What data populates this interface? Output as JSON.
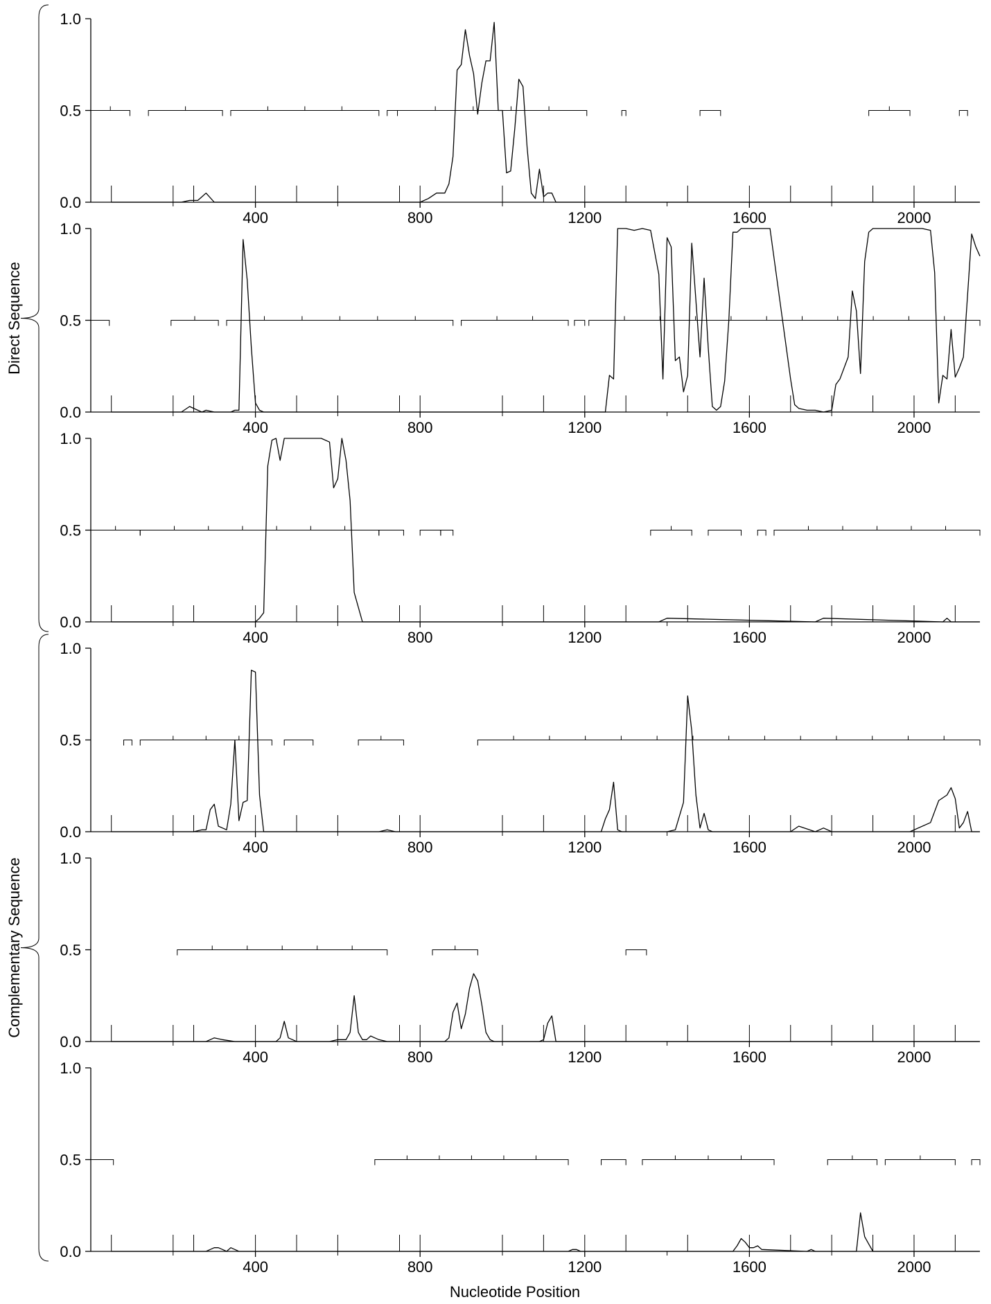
{
  "xlabel": "Nucleotide Position",
  "groups": [
    {
      "label": "Direct Sequence",
      "panels": [
        0,
        1,
        2
      ]
    },
    {
      "label": "Complementary Sequence",
      "panels": [
        3,
        4,
        5
      ]
    }
  ],
  "chart_data": [
    {
      "type": "line",
      "xlim": [
        0,
        2160
      ],
      "ylim": [
        0,
        1
      ],
      "xticks": [
        400,
        800,
        1200,
        1600,
        2000
      ],
      "yticks": [
        "0.0",
        "0.5",
        "1.0"
      ],
      "x": [
        50,
        200,
        220,
        240,
        260,
        270,
        280,
        300,
        400,
        600,
        800,
        820,
        840,
        860,
        870,
        880,
        890,
        900,
        910,
        920,
        930,
        940,
        950,
        960,
        970,
        980,
        990,
        1000,
        1010,
        1020,
        1030,
        1040,
        1050,
        1060,
        1070,
        1080,
        1090,
        1100,
        1110,
        1120,
        1130,
        1140,
        1150,
        1160,
        1170,
        2160
      ],
      "y": [
        0,
        0,
        0,
        0.01,
        0.01,
        0.03,
        0.05,
        0,
        0,
        0,
        0,
        0.02,
        0.05,
        0.05,
        0.1,
        0.25,
        0.72,
        0.75,
        0.94,
        0.8,
        0.7,
        0.48,
        0.65,
        0.77,
        0.77,
        0.98,
        0.5,
        0.5,
        0.16,
        0.17,
        0.4,
        0.67,
        0.63,
        0.3,
        0.05,
        0.02,
        0.18,
        0.03,
        0.05,
        0.05,
        0,
        0,
        0,
        0,
        0,
        0
      ],
      "segments": [
        [
          0,
          95
        ],
        [
          140,
          320
        ],
        [
          340,
          700
        ],
        [
          720,
          745
        ],
        [
          745,
          1205
        ],
        [
          1290,
          1300
        ],
        [
          1480,
          1530
        ],
        [
          1890,
          1990
        ],
        [
          2110,
          2130
        ]
      ]
    },
    {
      "type": "line",
      "xlim": [
        0,
        2160
      ],
      "ylim": [
        0,
        1
      ],
      "xticks": [
        400,
        800,
        1200,
        1600,
        2000
      ],
      "yticks": [
        "0.0",
        "0.5",
        "1.0"
      ],
      "x": [
        50,
        200,
        220,
        240,
        260,
        270,
        280,
        300,
        320,
        340,
        350,
        360,
        370,
        380,
        390,
        400,
        410,
        420,
        500,
        800,
        1200,
        1240,
        1250,
        1260,
        1270,
        1280,
        1300,
        1320,
        1340,
        1360,
        1380,
        1390,
        1400,
        1410,
        1420,
        1430,
        1440,
        1450,
        1460,
        1480,
        1490,
        1500,
        1510,
        1520,
        1530,
        1540,
        1550,
        1560,
        1570,
        1580,
        1600,
        1650,
        1700,
        1710,
        1720,
        1740,
        1760,
        1780,
        1800,
        1810,
        1820,
        1840,
        1850,
        1860,
        1870,
        1880,
        1890,
        1900,
        1920,
        1950,
        2000,
        2020,
        2040,
        2050,
        2060,
        2070,
        2080,
        2090,
        2100,
        2110,
        2120,
        2140,
        2150,
        2160
      ],
      "y": [
        0,
        0,
        0,
        0.03,
        0.01,
        0,
        0.01,
        0,
        0,
        0,
        0.01,
        0.01,
        0.94,
        0.72,
        0.35,
        0.05,
        0.01,
        0,
        0,
        0,
        0,
        0,
        0,
        0.2,
        0.18,
        1,
        1,
        0.99,
        1,
        0.99,
        0.75,
        0.18,
        0.95,
        0.9,
        0.28,
        0.3,
        0.11,
        0.2,
        0.92,
        0.3,
        0.73,
        0.35,
        0.03,
        0.01,
        0.03,
        0.17,
        0.5,
        0.98,
        0.98,
        1,
        1,
        1,
        0.18,
        0.04,
        0.02,
        0.01,
        0.01,
        0,
        0.01,
        0.15,
        0.18,
        0.3,
        0.66,
        0.55,
        0.21,
        0.82,
        0.98,
        1,
        1,
        1,
        1,
        1,
        0.99,
        0.76,
        0.05,
        0.2,
        0.18,
        0.45,
        0.19,
        0.24,
        0.3,
        0.97,
        0.9,
        0.85
      ],
      "segments": [
        [
          0,
          45
        ],
        [
          195,
          310
        ],
        [
          330,
          880
        ],
        [
          900,
          1160
        ],
        [
          1175,
          1200
        ],
        [
          1210,
          2160
        ]
      ]
    },
    {
      "type": "line",
      "xlim": [
        0,
        2160
      ],
      "ylim": [
        0,
        1
      ],
      "xticks": [
        400,
        800,
        1200,
        1600,
        2000
      ],
      "yticks": [
        "0.0",
        "0.5",
        "1.0"
      ],
      "x": [
        50,
        200,
        280,
        300,
        400,
        410,
        420,
        430,
        440,
        450,
        460,
        470,
        480,
        500,
        560,
        580,
        590,
        600,
        610,
        620,
        630,
        640,
        660,
        670,
        700,
        1380,
        1400,
        1760,
        1780,
        2070,
        2080,
        2090,
        2160
      ],
      "y": [
        0,
        0,
        0,
        0,
        0,
        0.02,
        0.05,
        0.85,
        0.99,
        1,
        0.88,
        1,
        1,
        1,
        1,
        0.98,
        0.73,
        0.78,
        1,
        0.88,
        0.66,
        0.16,
        0,
        0,
        0,
        0,
        0.02,
        0,
        0.02,
        0,
        0.02,
        0,
        0
      ],
      "segments": [
        [
          0,
          120
        ],
        [
          120,
          700
        ],
        [
          700,
          760
        ],
        [
          800,
          850
        ],
        [
          850,
          880
        ],
        [
          1360,
          1460
        ],
        [
          1500,
          1580
        ],
        [
          1620,
          1640
        ],
        [
          1660,
          2160
        ]
      ]
    },
    {
      "type": "line",
      "xlim": [
        0,
        2160
      ],
      "ylim": [
        0,
        1
      ],
      "xticks": [
        400,
        800,
        1200,
        1600,
        2000
      ],
      "yticks": [
        "0.0",
        "0.5",
        "1.0"
      ],
      "x": [
        50,
        200,
        250,
        270,
        280,
        290,
        300,
        310,
        320,
        330,
        340,
        350,
        360,
        370,
        380,
        390,
        400,
        410,
        420,
        430,
        440,
        460,
        700,
        720,
        740,
        1200,
        1240,
        1250,
        1260,
        1270,
        1280,
        1290,
        1300,
        1320,
        1340,
        1400,
        1420,
        1440,
        1450,
        1460,
        1470,
        1480,
        1490,
        1500,
        1510,
        1520,
        1600,
        1680,
        1700,
        1720,
        1760,
        1780,
        1800,
        1990,
        2040,
        2060,
        2080,
        2090,
        2100,
        2110,
        2120,
        2130,
        2140,
        2150,
        2160
      ],
      "y": [
        0,
        0,
        0,
        0.01,
        0.01,
        0.12,
        0.15,
        0.03,
        0.02,
        0.01,
        0.15,
        0.5,
        0.06,
        0.16,
        0.17,
        0.88,
        0.87,
        0.2,
        0,
        0,
        0,
        0,
        0,
        0.01,
        0,
        0,
        0,
        0.07,
        0.12,
        0.27,
        0.01,
        0,
        0,
        0,
        0,
        0,
        0.01,
        0.16,
        0.74,
        0.55,
        0.2,
        0.02,
        0.1,
        0.01,
        0,
        0,
        0,
        0,
        0,
        0.03,
        0,
        0.02,
        0,
        0,
        0.05,
        0.17,
        0.2,
        0.24,
        0.18,
        0.02,
        0.05,
        0.11,
        0,
        0,
        0
      ],
      "segments": [
        [
          80,
          100
        ],
        [
          120,
          440
        ],
        [
          470,
          540
        ],
        [
          650,
          760
        ],
        [
          940,
          2160
        ]
      ]
    },
    {
      "type": "line",
      "xlim": [
        0,
        2160
      ],
      "ylim": [
        0,
        1
      ],
      "xticks": [
        400,
        800,
        1200,
        1600,
        2000
      ],
      "yticks": [
        "0.0",
        "0.5",
        "1.0"
      ],
      "x": [
        50,
        270,
        280,
        290,
        300,
        320,
        350,
        450,
        460,
        470,
        480,
        490,
        500,
        560,
        580,
        600,
        610,
        620,
        630,
        640,
        650,
        660,
        670,
        680,
        690,
        700,
        720,
        780,
        860,
        870,
        880,
        890,
        900,
        910,
        920,
        930,
        940,
        950,
        960,
        970,
        980,
        990,
        1000,
        1090,
        1100,
        1110,
        1120,
        1130,
        1140,
        1200,
        2160
      ],
      "y": [
        0,
        0,
        0,
        0.01,
        0.02,
        0.01,
        0,
        0,
        0.02,
        0.11,
        0.02,
        0.01,
        0,
        0,
        0,
        0.01,
        0.01,
        0.01,
        0.05,
        0.25,
        0.05,
        0.01,
        0.01,
        0.03,
        0.02,
        0.01,
        0,
        0,
        0,
        0.02,
        0.16,
        0.21,
        0.07,
        0.15,
        0.29,
        0.37,
        0.33,
        0.2,
        0.05,
        0.01,
        0,
        0,
        0,
        0,
        0.01,
        0.1,
        0.14,
        0,
        0,
        0,
        0
      ],
      "segments": [
        [
          210,
          720
        ],
        [
          830,
          940
        ],
        [
          1300,
          1350
        ]
      ]
    },
    {
      "type": "line",
      "xlim": [
        0,
        2160
      ],
      "ylim": [
        0,
        1
      ],
      "xticks": [
        400,
        800,
        1200,
        1600,
        2000
      ],
      "yticks": [
        "0.0",
        "0.5",
        "1.0"
      ],
      "x": [
        50,
        270,
        280,
        290,
        300,
        310,
        320,
        330,
        340,
        350,
        360,
        1160,
        1170,
        1180,
        1190,
        1560,
        1570,
        1580,
        1590,
        1600,
        1610,
        1620,
        1630,
        1740,
        1750,
        1760,
        1860,
        1870,
        1880,
        1890,
        1900,
        1910,
        2160
      ],
      "y": [
        0,
        0,
        0,
        0.01,
        0.02,
        0.02,
        0.01,
        0,
        0.02,
        0.01,
        0,
        0,
        0.01,
        0.01,
        0,
        0,
        0.03,
        0.07,
        0.05,
        0.02,
        0.02,
        0.03,
        0.01,
        0,
        0.01,
        0,
        0,
        0.21,
        0.08,
        0.04,
        0,
        0,
        0
      ],
      "segments": [
        [
          0,
          55
        ],
        [
          690,
          1160
        ],
        [
          1240,
          1300
        ],
        [
          1340,
          1660
        ],
        [
          1790,
          1910
        ],
        [
          1930,
          2100
        ],
        [
          2140,
          2160
        ]
      ]
    }
  ]
}
